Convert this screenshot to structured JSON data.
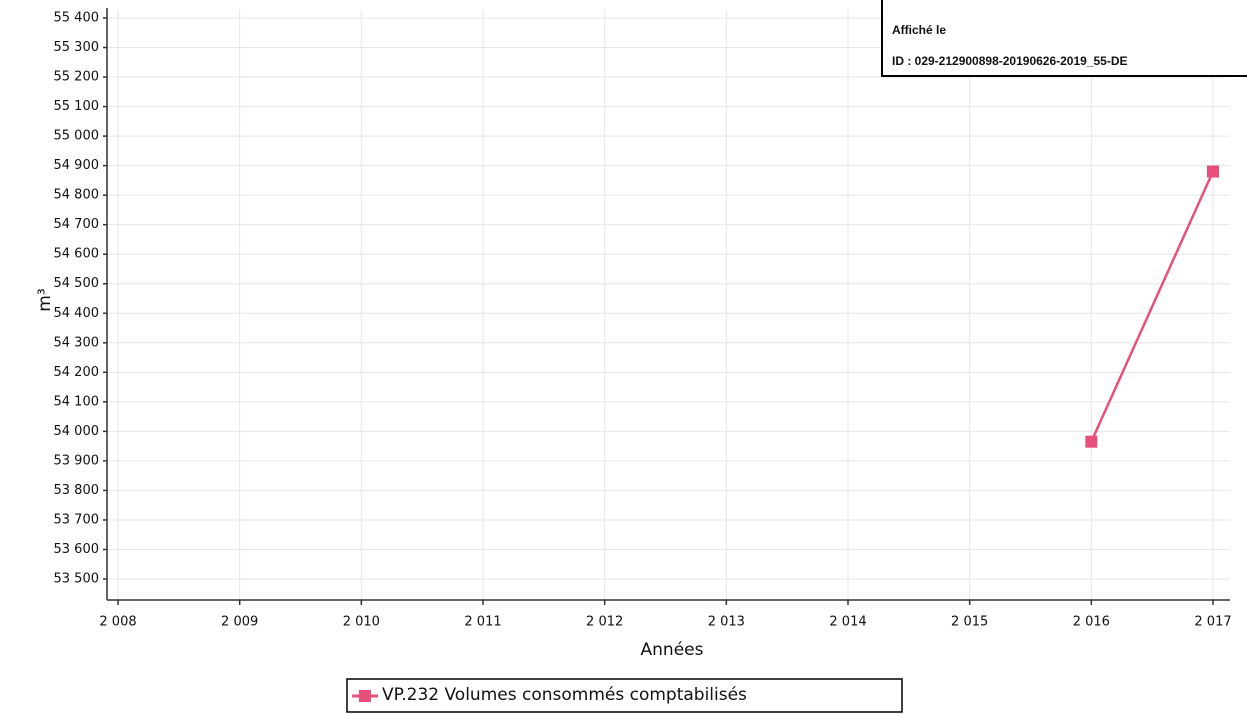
{
  "chart_data": {
    "type": "line",
    "xlabel": "Années",
    "ylabel": "m³",
    "x": [
      2016,
      2017
    ],
    "series": [
      {
        "name": "VP.232 Volumes consommés comptabilisés",
        "color": "#e8507a",
        "values": [
          53965,
          54880
        ]
      }
    ],
    "xlim": [
      2008,
      2017
    ],
    "xticks": [
      {
        "value": 2008,
        "label": "2 008"
      },
      {
        "value": 2009,
        "label": "2 009"
      },
      {
        "value": 2010,
        "label": "2 010"
      },
      {
        "value": 2011,
        "label": "2 011"
      },
      {
        "value": 2012,
        "label": "2 012"
      },
      {
        "value": 2013,
        "label": "2 013"
      },
      {
        "value": 2014,
        "label": "2 014"
      },
      {
        "value": 2015,
        "label": "2 015"
      },
      {
        "value": 2016,
        "label": "2 016"
      },
      {
        "value": 2017,
        "label": "2 017"
      }
    ],
    "ylim": [
      53500,
      55400
    ],
    "yticks": [
      {
        "value": 53500,
        "label": "53 500"
      },
      {
        "value": 53600,
        "label": "53 600"
      },
      {
        "value": 53700,
        "label": "53 700"
      },
      {
        "value": 53800,
        "label": "53 800"
      },
      {
        "value": 53900,
        "label": "53 900"
      },
      {
        "value": 54000,
        "label": "54 000"
      },
      {
        "value": 54100,
        "label": "54 100"
      },
      {
        "value": 54200,
        "label": "54 200"
      },
      {
        "value": 54300,
        "label": "54 300"
      },
      {
        "value": 54400,
        "label": "54 400"
      },
      {
        "value": 54500,
        "label": "54 500"
      },
      {
        "value": 54600,
        "label": "54 600"
      },
      {
        "value": 54700,
        "label": "54 700"
      },
      {
        "value": 54800,
        "label": "54 800"
      },
      {
        "value": 54900,
        "label": "54 900"
      },
      {
        "value": 55000,
        "label": "55 000"
      },
      {
        "value": 55100,
        "label": "55 100"
      },
      {
        "value": 55200,
        "label": "55 200"
      },
      {
        "value": 55300,
        "label": "55 300"
      },
      {
        "value": 55400,
        "label": "55 400"
      }
    ],
    "grid": true,
    "legend": "bottom",
    "annotations": [
      "Affiché le",
      "ID : 029-212900898-20190626-2019_55-DE"
    ]
  }
}
